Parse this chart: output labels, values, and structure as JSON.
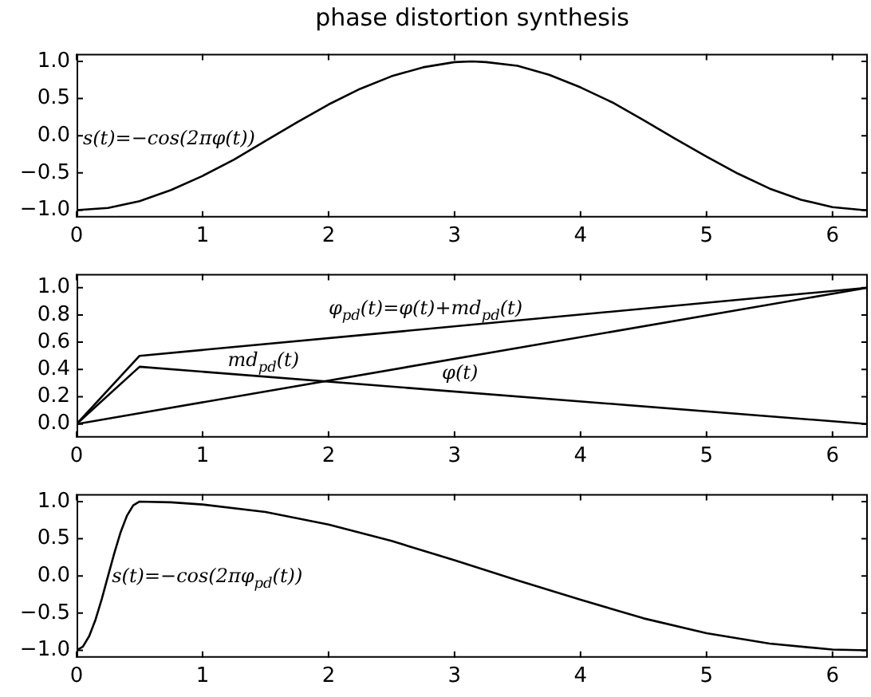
{
  "chart_data": [
    {
      "type": "line",
      "title": "phase distortion synthesis",
      "x": [
        0,
        0.25,
        0.5,
        0.75,
        1,
        1.25,
        1.5,
        1.75,
        2,
        2.25,
        2.5,
        2.75,
        3,
        3.14,
        3.25,
        3.5,
        3.75,
        4,
        4.25,
        4.5,
        4.75,
        5,
        5.25,
        5.5,
        5.75,
        6,
        6.25,
        6.28
      ],
      "series": [
        {
          "color": "#000000",
          "values": [
            -1.0,
            -0.97,
            -0.88,
            -0.73,
            -0.54,
            -0.32,
            -0.07,
            0.18,
            0.42,
            0.63,
            0.8,
            0.92,
            0.99,
            1.0,
            0.99,
            0.94,
            0.82,
            0.65,
            0.45,
            0.21,
            -0.04,
            -0.28,
            -0.51,
            -0.71,
            -0.86,
            -0.96,
            -1.0,
            -1.0
          ]
        }
      ],
      "xlim": [
        0,
        6.28
      ],
      "xticks": [
        0,
        1,
        2,
        3,
        4,
        5,
        6
      ],
      "ylim": [
        -1.1,
        1.1
      ],
      "yticks": [
        {
          "value": -1,
          "label": "−1.0"
        },
        {
          "value": -0.5,
          "label": "−0.5"
        },
        {
          "value": 0,
          "label": "0.0"
        },
        {
          "value": 0.5,
          "label": "0.5"
        },
        {
          "value": 1,
          "label": "1.0"
        }
      ],
      "annotations": [
        "s(t)=−cos(2πφ(t))"
      ]
    },
    {
      "type": "line",
      "series": [
        {
          "color": "#000000",
          "x": [
            0,
            0.5,
            6.28
          ],
          "values": [
            0,
            0.5,
            1
          ]
        },
        {
          "color": "#000000",
          "x": [
            0,
            0.5,
            6.28
          ],
          "values": [
            0,
            0.42,
            0
          ]
        },
        {
          "color": "#000000",
          "x": [
            0,
            6.28
          ],
          "values": [
            0,
            1
          ]
        }
      ],
      "xlim": [
        0,
        6.28
      ],
      "xticks": [
        0,
        1,
        2,
        3,
        4,
        5,
        6
      ],
      "ylim": [
        -0.1,
        1.1
      ],
      "yticks": [
        {
          "value": 0,
          "label": "0.0"
        },
        {
          "value": 0.2,
          "label": "0.2"
        },
        {
          "value": 0.4,
          "label": "0.4"
        },
        {
          "value": 0.6,
          "label": "0.6"
        },
        {
          "value": 0.8,
          "label": "0.8"
        },
        {
          "value": 1,
          "label": "1.0"
        }
      ],
      "annotations": [
        "φ$_{pd}$(t)=φ(t)+md$_{pd}$(t)",
        "md$_{pd}$(t)",
        "φ(t)"
      ]
    },
    {
      "type": "line",
      "x": [
        0,
        0.05,
        0.1,
        0.15,
        0.2,
        0.25,
        0.3,
        0.35,
        0.4,
        0.45,
        0.5,
        0.75,
        1,
        1.5,
        2,
        2.5,
        3,
        3.5,
        4,
        4.5,
        5,
        5.5,
        6,
        6.28
      ],
      "series": [
        {
          "color": "#000000",
          "values": [
            -1.0,
            -0.95,
            -0.81,
            -0.59,
            -0.31,
            0.0,
            0.31,
            0.59,
            0.81,
            0.95,
            1.0,
            0.99,
            0.96,
            0.86,
            0.69,
            0.47,
            0.21,
            -0.06,
            -0.32,
            -0.57,
            -0.77,
            -0.91,
            -0.99,
            -1.0
          ]
        }
      ],
      "xlim": [
        0,
        6.28
      ],
      "xticks": [
        0,
        1,
        2,
        3,
        4,
        5,
        6
      ],
      "ylim": [
        -1.1,
        1.1
      ],
      "yticks": [
        {
          "value": -1,
          "label": "−1.0"
        },
        {
          "value": -0.5,
          "label": "−0.5"
        },
        {
          "value": 0,
          "label": "0.0"
        },
        {
          "value": 0.5,
          "label": "0.5"
        },
        {
          "value": 1,
          "label": "1.0"
        }
      ],
      "annotations": [
        "s(t)=−cos(2πφ$_{pd}$(t))"
      ]
    }
  ]
}
